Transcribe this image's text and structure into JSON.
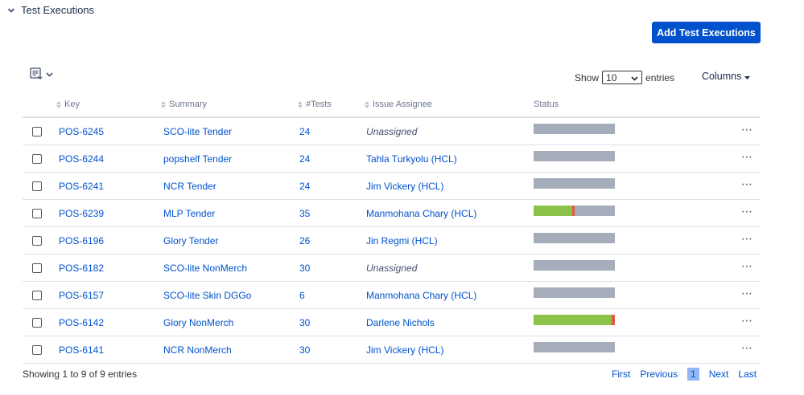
{
  "section": {
    "title": "Test Executions"
  },
  "toolbar": {
    "add_label": "Add Test Executions"
  },
  "length": {
    "show_label": "Show",
    "value": "10",
    "entries_label": "entries"
  },
  "columns_label": "Columns",
  "headers": {
    "key": "Key",
    "summary": "Summary",
    "tests": "#Tests",
    "assignee": "Issue Assignee",
    "status": "Status"
  },
  "colors": {
    "accent": "#0052cc",
    "pass": "#8bc34a",
    "fail": "#e05a44",
    "todo": "#a5adba"
  },
  "rows": [
    {
      "key": "POS-6245",
      "summary": "SCO-lite Tender",
      "tests": "24",
      "assignee": "Unassigned",
      "unassigned": true,
      "pass": 0,
      "fail": 0
    },
    {
      "key": "POS-6244",
      "summary": "popshelf Tender",
      "tests": "24",
      "assignee": "Tahla Turkyolu (HCL)",
      "unassigned": false,
      "pass": 0,
      "fail": 0
    },
    {
      "key": "POS-6241",
      "summary": "NCR Tender",
      "tests": "24",
      "assignee": "Jim Vickery (HCL)",
      "unassigned": false,
      "pass": 0,
      "fail": 0
    },
    {
      "key": "POS-6239",
      "summary": "MLP Tender",
      "tests": "35",
      "assignee": "Manmohana Chary (HCL)",
      "unassigned": false,
      "pass": 0.48,
      "fail": 0.03
    },
    {
      "key": "POS-6196",
      "summary": "Glory Tender",
      "tests": "26",
      "assignee": "Jin Regmi (HCL)",
      "unassigned": false,
      "pass": 0,
      "fail": 0
    },
    {
      "key": "POS-6182",
      "summary": "SCO-lite NonMerch",
      "tests": "30",
      "assignee": "Unassigned",
      "unassigned": true,
      "pass": 0,
      "fail": 0
    },
    {
      "key": "POS-6157",
      "summary": "SCO-lite Skin DGGo",
      "tests": "6",
      "assignee": "Manmohana Chary (HCL)",
      "unassigned": false,
      "pass": 0,
      "fail": 0
    },
    {
      "key": "POS-6142",
      "summary": "Glory NonMerch",
      "tests": "30",
      "assignee": "Darlene Nichols",
      "unassigned": false,
      "pass": 0.96,
      "fail": 0.04
    },
    {
      "key": "POS-6141",
      "summary": "NCR NonMerch",
      "tests": "30",
      "assignee": "Jim Vickery (HCL)",
      "unassigned": false,
      "pass": 0,
      "fail": 0
    }
  ],
  "footer": {
    "info": "Showing 1 to 9 of 9 entries"
  },
  "pager": {
    "first": "First",
    "previous": "Previous",
    "current": "1",
    "next": "Next",
    "last": "Last"
  }
}
